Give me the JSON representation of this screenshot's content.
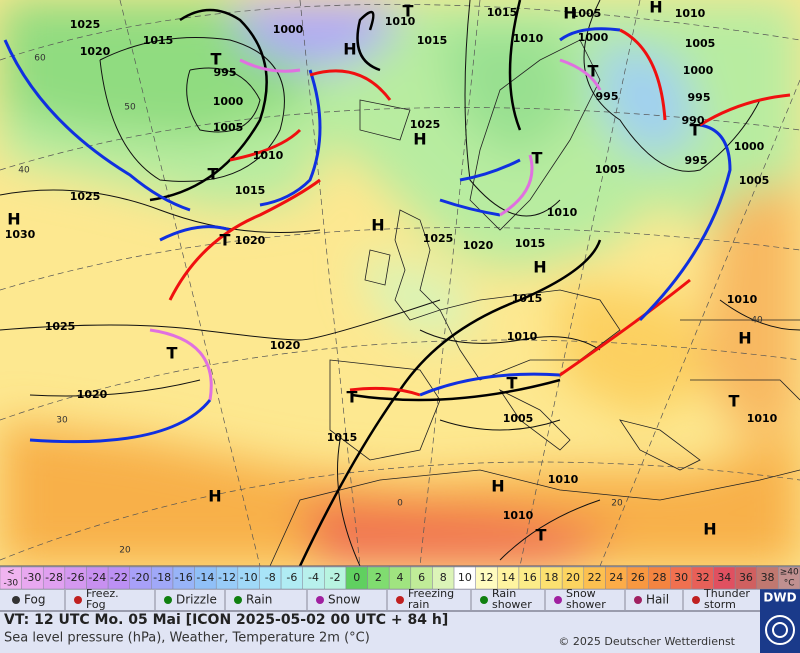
{
  "map": {
    "isobar_labels": [
      "1025",
      "1020",
      "1015",
      "995",
      "1000",
      "1005",
      "1010",
      "1015",
      "1020",
      "1025",
      "1030",
      "1025",
      "1020",
      "1020",
      "1000",
      "1010",
      "1015",
      "1015",
      "1010",
      "1025",
      "1025",
      "1020",
      "1015",
      "1010",
      "1015",
      "1010",
      "1005",
      "1015",
      "1010",
      "1010",
      "1005",
      "1000",
      "995",
      "1010",
      "1005",
      "1000",
      "995",
      "990",
      "995",
      "1000",
      "1005",
      "1005",
      "1010",
      "1010"
    ],
    "pressure_centers": [
      "H",
      "T",
      "H",
      "T",
      "H",
      "T",
      "H",
      "H",
      "T",
      "T",
      "T",
      "H",
      "T",
      "H",
      "T",
      "H",
      "T",
      "T",
      "T",
      "H",
      "T",
      "H",
      "H"
    ],
    "graticule_labels": [
      "60",
      "50",
      "40",
      "30",
      "20",
      "0",
      "40",
      "20"
    ]
  },
  "legend": {
    "temperature_scale": {
      "labels": [
        [
          "<",
          "-30"
        ],
        [
          "-30"
        ],
        [
          "-28"
        ],
        [
          "-26"
        ],
        [
          "-24"
        ],
        [
          "-22"
        ],
        [
          "-20"
        ],
        [
          "-18"
        ],
        [
          "-16"
        ],
        [
          "-14"
        ],
        [
          "-12"
        ],
        [
          "-10"
        ],
        [
          "-8"
        ],
        [
          "-6"
        ],
        [
          "-4"
        ],
        [
          "-2"
        ],
        [
          "0"
        ],
        [
          "2"
        ],
        [
          "4"
        ],
        [
          "6"
        ],
        [
          "8"
        ],
        [
          "10"
        ],
        [
          "12"
        ],
        [
          "14"
        ],
        [
          "16"
        ],
        [
          "18"
        ],
        [
          "20"
        ],
        [
          "22"
        ],
        [
          "24"
        ],
        [
          "26"
        ],
        [
          "28"
        ],
        [
          "30"
        ],
        [
          "32"
        ],
        [
          "34"
        ],
        [
          "36"
        ],
        [
          "38"
        ],
        [
          "≥40",
          "°C"
        ]
      ],
      "colors": [
        "#f0b4f0",
        "#e8a8f0",
        "#e0a0f0",
        "#d498f0",
        "#c890f0",
        "#bc90f4",
        "#a8a0f8",
        "#a0a8f8",
        "#98b4f8",
        "#90c0f8",
        "#98ccf8",
        "#a0d8f8",
        "#a8e4f8",
        "#b0ecf4",
        "#b8f0ec",
        "#b8f4e0",
        "#60d060",
        "#80dc70",
        "#a0e480",
        "#c0ec98",
        "#dcf4b8",
        "#ffffff",
        "#fffcc0",
        "#fff4a0",
        "#fcec88",
        "#fce070",
        "#fcd460",
        "#fcc050",
        "#fcac48",
        "#f89840",
        "#f48440",
        "#f07050",
        "#e86058",
        "#e05060",
        "#d06060",
        "#c07870",
        "#c09090"
      ]
    },
    "weather_symbols": [
      {
        "lines": [
          "Fog"
        ]
      },
      {
        "lines": [
          "Freez.",
          "Fog"
        ]
      },
      {
        "lines": [
          "Drizzle"
        ]
      },
      {
        "lines": [
          "Rain"
        ]
      },
      {
        "lines": [
          "Snow"
        ]
      },
      {
        "lines": [
          "Freezing",
          "rain"
        ]
      },
      {
        "lines": [
          "Rain",
          "shower"
        ]
      },
      {
        "lines": [
          "Snow",
          "shower"
        ]
      },
      {
        "lines": [
          "Hail"
        ]
      },
      {
        "lines": [
          "Thunder",
          "storm"
        ]
      }
    ]
  },
  "footer": {
    "valid_time": "VT: 12 UTC Mo.  05 Mai [ICON 2025-05-02  00 UTC + 84 h]",
    "description": "Sea level pressure (hPa), Weather, Temperature 2m (°C)",
    "copyright": "© 2025 Deutscher Wetterdienst",
    "logo": "DWD"
  }
}
